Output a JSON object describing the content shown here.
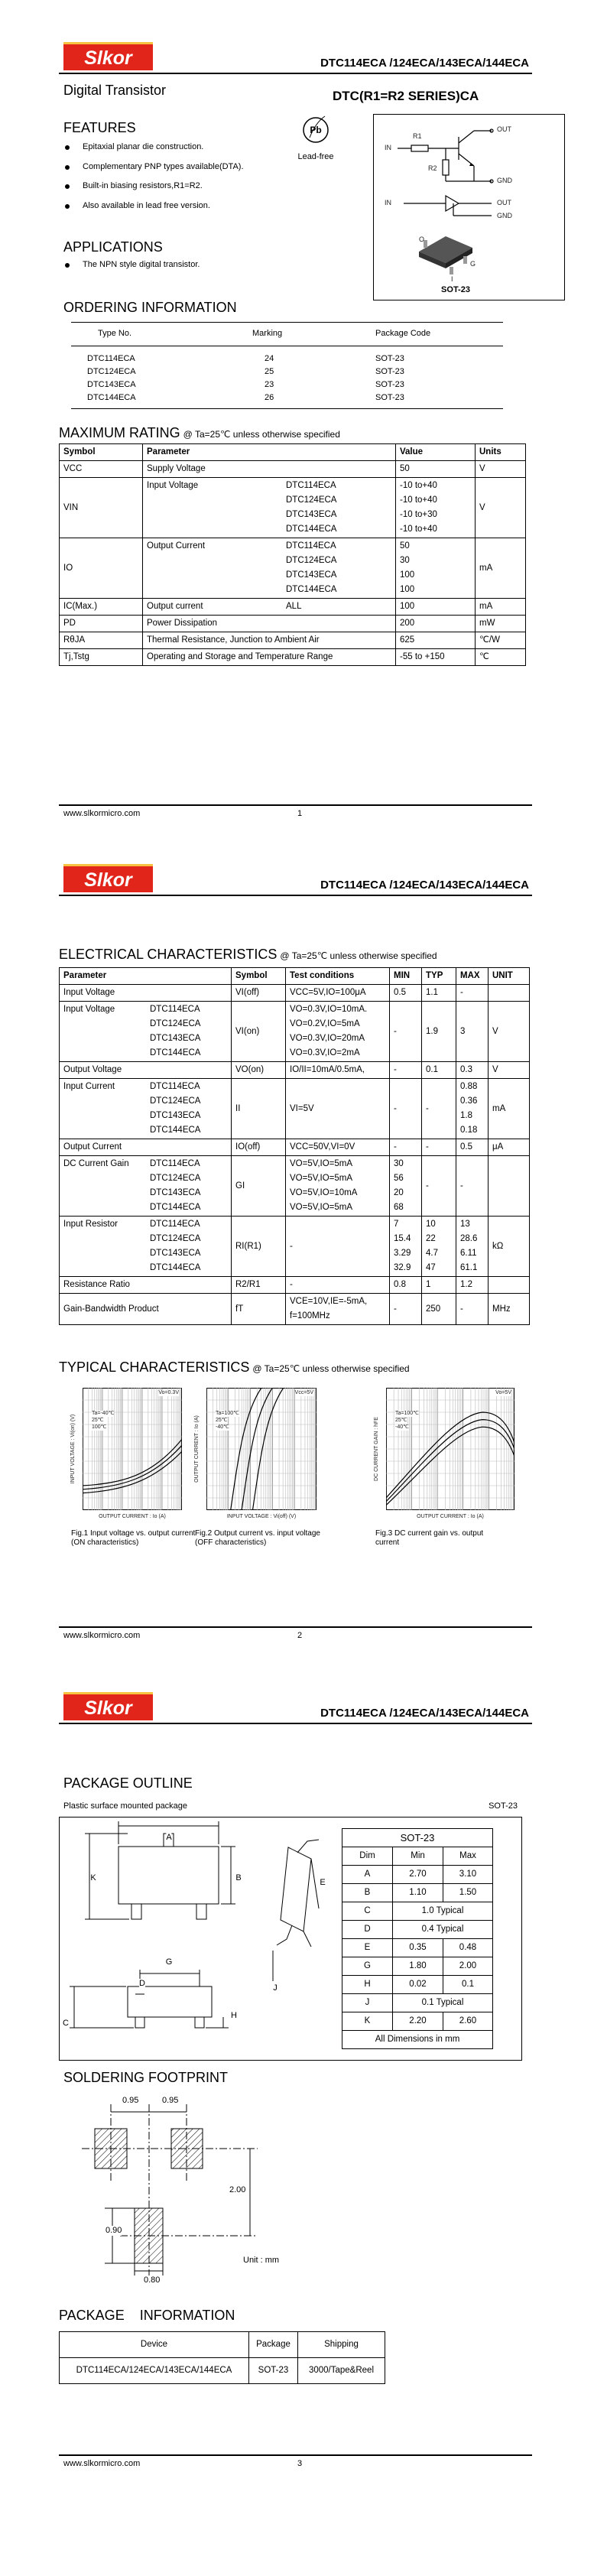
{
  "pages": [
    {
      "logo": "Slkor",
      "title": "DTC114ECA /124ECA/143ECA/144ECA",
      "url": "www.slkormicro.com",
      "number": "1"
    },
    {
      "logo": "Slkor",
      "title": "DTC114ECA /124ECA/143ECA/144ECA",
      "url": "www.slkormicro.com",
      "number": "2"
    },
    {
      "logo": "Slkor",
      "title": "DTC114ECA /124ECA/143ECA/144ECA",
      "url": "www.slkormicro.com",
      "number": "3"
    }
  ],
  "overview": {
    "product": "Digital Transistor",
    "series": "DTC(R1=R2 SERIES)CA",
    "pb": "Pb",
    "lead_free": "Lead-free",
    "circuit": {
      "in": "IN",
      "r1": "R1",
      "r2": "R2",
      "out": "OUT",
      "gnd": "GND",
      "in2": "IN",
      "out2": "OUT",
      "gnd2": "GND"
    },
    "package": {
      "pins": [
        "O",
        "G",
        "I"
      ],
      "name": "SOT-23"
    }
  },
  "features": {
    "title": "FEATURES",
    "items": [
      "Epitaxial planar die construction.",
      "Complementary PNP types available(DTA).",
      "Built-in biasing resistors,R1=R2.",
      "Also available in lead free version."
    ]
  },
  "applications": {
    "title": "APPLICATIONS",
    "items": [
      "The NPN style digital transistor."
    ]
  },
  "ordering": {
    "title": "ORDERING INFORMATION",
    "headers": [
      "Type No.",
      "Marking",
      "Package Code"
    ],
    "rows": [
      [
        "DTC114ECA",
        "24",
        "SOT-23"
      ],
      [
        "DTC124ECA",
        "25",
        "SOT-23"
      ],
      [
        "DTC143ECA",
        "23",
        "SOT-23"
      ],
      [
        "DTC144ECA",
        "26",
        "SOT-23"
      ]
    ]
  },
  "max_rating": {
    "title": "MAXIMUM RATING",
    "condition": "@ Ta=25℃ unless otherwise specified",
    "headers": [
      "Symbol",
      "Parameter",
      "Value",
      "Units"
    ],
    "rows": [
      {
        "symbol": "VCC",
        "parameter": "Supply Voltage",
        "values": [
          "50"
        ],
        "unit": "V"
      },
      {
        "symbol": "VIN",
        "parameter": "Input Voltage",
        "devices": [
          "DTC114ECA",
          "DTC124ECA",
          "DTC143ECA",
          "DTC144ECA"
        ],
        "values": [
          "-10 to+40",
          "-10 to+40",
          "-10 to+30",
          "-10 to+40"
        ],
        "unit": "V"
      },
      {
        "symbol": "IO",
        "parameter": "Output Current",
        "devices": [
          "DTC114ECA",
          "DTC124ECA",
          "DTC143ECA",
          "DTC144ECA"
        ],
        "values": [
          "50",
          "30",
          "100",
          "100"
        ],
        "unit": "mA"
      },
      {
        "symbol": "IC(Max.)",
        "parameter": "Output current",
        "devices": [
          "ALL"
        ],
        "values": [
          "100"
        ],
        "unit": "mA"
      },
      {
        "symbol": "PD",
        "parameter": "Power Dissipation",
        "values": [
          "200"
        ],
        "unit": "mW"
      },
      {
        "symbol": "RθJA",
        "parameter": "Thermal Resistance, Junction to Ambient Air",
        "values": [
          "625"
        ],
        "unit": "℃/W"
      },
      {
        "symbol": "Tj,Tstg",
        "parameter": "Operating and Storage and Temperature Range",
        "values": [
          "-55 to +150"
        ],
        "unit": "℃"
      }
    ]
  },
  "electrical": {
    "title": "ELECTRICAL CHARACTERISTICS",
    "condition": "@ Ta=25℃ unless otherwise specified",
    "headers": [
      "Parameter",
      "Symbol",
      "Test conditions",
      "MIN",
      "TYP",
      "MAX",
      "UNIT"
    ],
    "rows": [
      {
        "parameter": "Input Voltage",
        "symbol": "VI(off)",
        "conditions": [
          "VCC=5V,IO=100μA"
        ],
        "min": "0.5",
        "typ": "1.1",
        "max": "-"
      },
      {
        "parameter": "Input Voltage",
        "devices": [
          "DTC114ECA",
          "DTC124ECA",
          "DTC143ECA",
          "DTC144ECA"
        ],
        "symbol": "VI(on)",
        "conditions": [
          "VO=0.3V,IO=10mA.",
          "VO=0.2V,IO=5mA",
          "VO=0.3V,IO=20mA",
          "VO=0.3V,IO=2mA"
        ],
        "min": "-",
        "typ": "1.9",
        "max": "3",
        "unit": "V"
      },
      {
        "parameter": "Output Voltage",
        "symbol": "VO(on)",
        "conditions": [
          "IO/II=10mA/0.5mA,"
        ],
        "min": "-",
        "typ": "0.1",
        "max": "0.3",
        "unit": "V"
      },
      {
        "parameter": "Input Current",
        "devices": [
          "DTC114ECA",
          "DTC124ECA",
          "DTC143ECA",
          "DTC144ECA"
        ],
        "symbol": "II",
        "conditions": [
          "VI=5V"
        ],
        "min": "-",
        "typ": "-",
        "max": [
          "0.88",
          "0.36",
          "1.8",
          "0.18"
        ],
        "unit": "mA"
      },
      {
        "parameter": "Output Current",
        "symbol": "IO(off)",
        "conditions": [
          "VCC=50V,VI=0V"
        ],
        "min": "-",
        "typ": "-",
        "max": "0.5",
        "unit": "μA"
      },
      {
        "parameter": "DC Current Gain",
        "devices": [
          "DTC114ECA",
          "DTC124ECA",
          "DTC143ECA",
          "DTC144ECA"
        ],
        "symbol": "GI",
        "conditions": [
          "VO=5V,IO=5mA",
          "VO=5V,IO=5mA",
          "VO=5V,IO=10mA",
          "VO=5V,IO=5mA"
        ],
        "min": [
          "30",
          "56",
          "20",
          "68"
        ],
        "typ": "-",
        "max": "-"
      },
      {
        "parameter": "Input Resistor",
        "devices": [
          "DTC114ECA",
          "DTC124ECA",
          "DTC143ECA",
          "DTC144ECA"
        ],
        "symbol": "RI(R1)",
        "conditions": [
          "-"
        ],
        "min": [
          "7",
          "15.4",
          "3.29",
          "32.9"
        ],
        "typ": [
          "10",
          "22",
          "4.7",
          "47"
        ],
        "max": [
          "13",
          "28.6",
          "6.11",
          "61.1"
        ],
        "unit": "kΩ"
      },
      {
        "parameter": "Resistance Ratio",
        "symbol": "R2/R1",
        "conditions": [
          "-"
        ],
        "min": "0.8",
        "typ": "1",
        "max": "1.2"
      },
      {
        "parameter": "Gain-Bandwidth Product",
        "symbol": "fT",
        "conditions": [
          "VCE=10V,IE=-5mA,",
          "f=100MHz"
        ],
        "min": "-",
        "typ": "250",
        "max": "-",
        "unit": "MHz"
      }
    ]
  },
  "typical": {
    "title": "TYPICAL CHARACTERISTICS",
    "condition": "@ Ta=25℃ unless otherwise specified",
    "figures": [
      {
        "caption": "Fig.1  Input voltage vs. output current (ON characteristics)",
        "x_label": "OUTPUT CURRENT : Io (A)",
        "y_label": "INPUT VOLTAGE : Vi(on) (V)",
        "note": "Vo=0.3V",
        "legend": [
          "Ta=-40℃",
          "25℃",
          "100℃"
        ]
      },
      {
        "caption": "Fig.2  Output current vs. input voltage (OFF characteristics)",
        "x_label": "INPUT VOLTAGE : Vi(off) (V)",
        "y_label": "OUTPUT CURRENT : Io (A)",
        "note": "Vcc=5V",
        "legend": [
          "Ta=100℃",
          "25℃",
          "-40℃"
        ]
      },
      {
        "caption": "Fig.3  DC current gain vs. output current",
        "x_label": "OUTPUT CURRENT : Io (A)",
        "y_label": "DC CURRENT GAIN : hFE",
        "note": "Vo=5V",
        "legend": [
          "Ta=100℃",
          "25℃",
          "-40℃"
        ]
      }
    ]
  },
  "outline": {
    "title": "PACKAGE OUTLINE",
    "description": "Plastic surface mounted package",
    "package": "SOT-23",
    "labels": [
      "A",
      "B",
      "K",
      "E",
      "J",
      "G",
      "D",
      "C",
      "H"
    ],
    "dimensions": {
      "title": "SOT-23",
      "headers": [
        "Dim",
        "Min",
        "Max"
      ],
      "rows": [
        [
          "A",
          "2.70",
          "3.10"
        ],
        [
          "B",
          "1.10",
          "1.50"
        ],
        [
          "C",
          "1.0 Typical"
        ],
        [
          "D",
          "0.4 Typical"
        ],
        [
          "E",
          "0.35",
          "0.48"
        ],
        [
          "G",
          "1.80",
          "2.00"
        ],
        [
          "H",
          "0.02",
          "0.1"
        ],
        [
          "J",
          "0.1 Typical"
        ],
        [
          "K",
          "2.20",
          "2.60"
        ]
      ],
      "note": "All Dimensions in mm"
    }
  },
  "footprint": {
    "title": "SOLDERING FOOTPRINT",
    "dims": [
      "0.95",
      "0.95",
      "2.00",
      "0.90",
      "0.80"
    ],
    "unit": "Unit : mm"
  },
  "package_info": {
    "title": "PACKAGE    INFORMATION",
    "headers": [
      "Device",
      "Package",
      "Shipping"
    ],
    "rows": [
      [
        "DTC114ECA/124ECA/143ECA/144ECA",
        "SOT-23",
        "3000/Tape&Reel"
      ]
    ]
  }
}
